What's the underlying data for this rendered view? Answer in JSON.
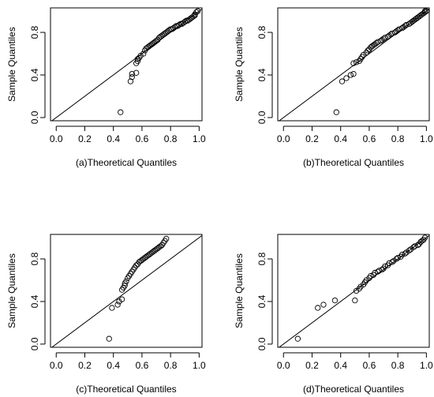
{
  "chart_data": [
    {
      "type": "scatter",
      "xlabel": "(a)Theoretical Quantiles",
      "ylabel": "Sample Quantiles",
      "xlim": [
        -0.04,
        1.02
      ],
      "ylim": [
        -0.03,
        1.03
      ],
      "xticks": [
        "0.0",
        "0.2",
        "0.4",
        "0.6",
        "0.8",
        "1.0"
      ],
      "yticks": [
        "0.0",
        "0.4",
        "0.8"
      ],
      "reference_line": {
        "slope": 1,
        "intercept": 0
      },
      "points": [
        [
          0.45,
          0.05
        ],
        [
          0.52,
          0.34
        ],
        [
          0.53,
          0.38
        ],
        [
          0.53,
          0.41
        ],
        [
          0.56,
          0.42
        ],
        [
          0.56,
          0.51
        ],
        [
          0.57,
          0.53
        ],
        [
          0.57,
          0.55
        ],
        [
          0.58,
          0.56
        ],
        [
          0.59,
          0.58
        ],
        [
          0.61,
          0.6
        ],
        [
          0.62,
          0.63
        ],
        [
          0.63,
          0.65
        ],
        [
          0.64,
          0.66
        ],
        [
          0.65,
          0.67
        ],
        [
          0.66,
          0.68
        ],
        [
          0.67,
          0.69
        ],
        [
          0.68,
          0.7
        ],
        [
          0.69,
          0.71
        ],
        [
          0.7,
          0.72
        ],
        [
          0.71,
          0.73
        ],
        [
          0.72,
          0.75
        ],
        [
          0.73,
          0.76
        ],
        [
          0.74,
          0.77
        ],
        [
          0.75,
          0.78
        ],
        [
          0.76,
          0.79
        ],
        [
          0.77,
          0.8
        ],
        [
          0.78,
          0.81
        ],
        [
          0.79,
          0.82
        ],
        [
          0.8,
          0.83
        ],
        [
          0.81,
          0.83
        ],
        [
          0.82,
          0.84
        ],
        [
          0.83,
          0.85
        ],
        [
          0.84,
          0.86
        ],
        [
          0.85,
          0.86
        ],
        [
          0.86,
          0.87
        ],
        [
          0.87,
          0.88
        ],
        [
          0.88,
          0.88
        ],
        [
          0.89,
          0.89
        ],
        [
          0.9,
          0.9
        ],
        [
          0.91,
          0.91
        ],
        [
          0.92,
          0.91
        ],
        [
          0.93,
          0.92
        ],
        [
          0.94,
          0.93
        ],
        [
          0.95,
          0.94
        ],
        [
          0.96,
          0.95
        ],
        [
          0.97,
          0.96
        ],
        [
          0.97,
          0.97
        ],
        [
          0.98,
          0.99
        ],
        [
          0.99,
          1.0
        ]
      ]
    },
    {
      "type": "scatter",
      "xlabel": "(b)Theoretical Quantiles",
      "ylabel": "Sample Quantiles",
      "xlim": [
        -0.04,
        1.02
      ],
      "ylim": [
        -0.03,
        1.03
      ],
      "xticks": [
        "0.0",
        "0.2",
        "0.4",
        "0.6",
        "0.8",
        "1.0"
      ],
      "yticks": [
        "0.0",
        "0.4",
        "0.8"
      ],
      "reference_line": {
        "slope": 1,
        "intercept": 0
      },
      "points": [
        [
          0.37,
          0.05
        ],
        [
          0.41,
          0.34
        ],
        [
          0.44,
          0.37
        ],
        [
          0.47,
          0.4
        ],
        [
          0.49,
          0.41
        ],
        [
          0.49,
          0.51
        ],
        [
          0.51,
          0.52
        ],
        [
          0.53,
          0.53
        ],
        [
          0.54,
          0.55
        ],
        [
          0.55,
          0.57
        ],
        [
          0.56,
          0.59
        ],
        [
          0.58,
          0.61
        ],
        [
          0.59,
          0.63
        ],
        [
          0.6,
          0.64
        ],
        [
          0.61,
          0.66
        ],
        [
          0.62,
          0.67
        ],
        [
          0.63,
          0.68
        ],
        [
          0.64,
          0.69
        ],
        [
          0.65,
          0.7
        ],
        [
          0.66,
          0.71
        ],
        [
          0.68,
          0.72
        ],
        [
          0.69,
          0.73
        ],
        [
          0.7,
          0.74
        ],
        [
          0.71,
          0.75
        ],
        [
          0.73,
          0.76
        ],
        [
          0.74,
          0.77
        ],
        [
          0.75,
          0.78
        ],
        [
          0.76,
          0.79
        ],
        [
          0.78,
          0.8
        ],
        [
          0.79,
          0.81
        ],
        [
          0.8,
          0.82
        ],
        [
          0.81,
          0.83
        ],
        [
          0.83,
          0.84
        ],
        [
          0.84,
          0.85
        ],
        [
          0.85,
          0.86
        ],
        [
          0.86,
          0.87
        ],
        [
          0.88,
          0.88
        ],
        [
          0.89,
          0.89
        ],
        [
          0.9,
          0.9
        ],
        [
          0.91,
          0.91
        ],
        [
          0.92,
          0.92
        ],
        [
          0.93,
          0.93
        ],
        [
          0.94,
          0.94
        ],
        [
          0.95,
          0.95
        ],
        [
          0.96,
          0.96
        ],
        [
          0.97,
          0.97
        ],
        [
          0.98,
          0.98
        ],
        [
          0.99,
          0.99
        ],
        [
          0.99,
          1.0
        ],
        [
          1.0,
          1.0
        ]
      ]
    },
    {
      "type": "scatter",
      "xlabel": "(c)Theoretical Quantiles",
      "ylabel": "Sample Quantiles",
      "xlim": [
        -0.04,
        1.02
      ],
      "ylim": [
        -0.03,
        1.03
      ],
      "xticks": [
        "0.0",
        "0.2",
        "0.4",
        "0.6",
        "0.8",
        "1.0"
      ],
      "yticks": [
        "0.0",
        "0.4",
        "0.8"
      ],
      "reference_line": {
        "slope": 1,
        "intercept": 0
      },
      "points": [
        [
          0.37,
          0.05
        ],
        [
          0.39,
          0.34
        ],
        [
          0.43,
          0.37
        ],
        [
          0.44,
          0.4
        ],
        [
          0.46,
          0.42
        ],
        [
          0.46,
          0.51
        ],
        [
          0.47,
          0.53
        ],
        [
          0.48,
          0.55
        ],
        [
          0.48,
          0.57
        ],
        [
          0.49,
          0.59
        ],
        [
          0.5,
          0.62
        ],
        [
          0.51,
          0.64
        ],
        [
          0.52,
          0.66
        ],
        [
          0.53,
          0.68
        ],
        [
          0.54,
          0.7
        ],
        [
          0.55,
          0.72
        ],
        [
          0.56,
          0.74
        ],
        [
          0.57,
          0.75
        ],
        [
          0.58,
          0.77
        ],
        [
          0.59,
          0.78
        ],
        [
          0.6,
          0.79
        ],
        [
          0.61,
          0.8
        ],
        [
          0.62,
          0.81
        ],
        [
          0.63,
          0.82
        ],
        [
          0.64,
          0.83
        ],
        [
          0.65,
          0.84
        ],
        [
          0.66,
          0.85
        ],
        [
          0.67,
          0.86
        ],
        [
          0.68,
          0.87
        ],
        [
          0.69,
          0.88
        ],
        [
          0.7,
          0.89
        ],
        [
          0.71,
          0.9
        ],
        [
          0.72,
          0.91
        ],
        [
          0.73,
          0.92
        ],
        [
          0.74,
          0.93
        ],
        [
          0.75,
          0.95
        ],
        [
          0.76,
          0.97
        ],
        [
          0.77,
          0.99
        ]
      ]
    },
    {
      "type": "scatter",
      "xlabel": "(d)Theoretical Quantiles",
      "ylabel": "Sample Quantiles",
      "xlim": [
        -0.04,
        1.02
      ],
      "ylim": [
        -0.03,
        1.03
      ],
      "xticks": [
        "0.0",
        "0.2",
        "0.4",
        "0.6",
        "0.8",
        "1.0"
      ],
      "yticks": [
        "0.0",
        "0.4",
        "0.8"
      ],
      "reference_line": {
        "slope": 1,
        "intercept": 0
      },
      "points": [
        [
          0.1,
          0.05
        ],
        [
          0.24,
          0.34
        ],
        [
          0.28,
          0.37
        ],
        [
          0.36,
          0.41
        ],
        [
          0.5,
          0.41
        ],
        [
          0.51,
          0.5
        ],
        [
          0.53,
          0.52
        ],
        [
          0.54,
          0.54
        ],
        [
          0.56,
          0.56
        ],
        [
          0.57,
          0.58
        ],
        [
          0.58,
          0.6
        ],
        [
          0.6,
          0.62
        ],
        [
          0.61,
          0.64
        ],
        [
          0.63,
          0.65
        ],
        [
          0.64,
          0.67
        ],
        [
          0.66,
          0.68
        ],
        [
          0.67,
          0.69
        ],
        [
          0.69,
          0.7
        ],
        [
          0.7,
          0.71
        ],
        [
          0.71,
          0.73
        ],
        [
          0.73,
          0.74
        ],
        [
          0.74,
          0.76
        ],
        [
          0.76,
          0.77
        ],
        [
          0.77,
          0.78
        ],
        [
          0.79,
          0.8
        ],
        [
          0.8,
          0.81
        ],
        [
          0.82,
          0.82
        ],
        [
          0.83,
          0.84
        ],
        [
          0.85,
          0.85
        ],
        [
          0.86,
          0.86
        ],
        [
          0.88,
          0.88
        ],
        [
          0.89,
          0.89
        ],
        [
          0.91,
          0.91
        ],
        [
          0.92,
          0.92
        ],
        [
          0.94,
          0.93
        ],
        [
          0.95,
          0.94
        ],
        [
          0.96,
          0.96
        ],
        [
          0.97,
          0.97
        ],
        [
          0.98,
          0.98
        ],
        [
          0.99,
          1.0
        ]
      ]
    }
  ]
}
